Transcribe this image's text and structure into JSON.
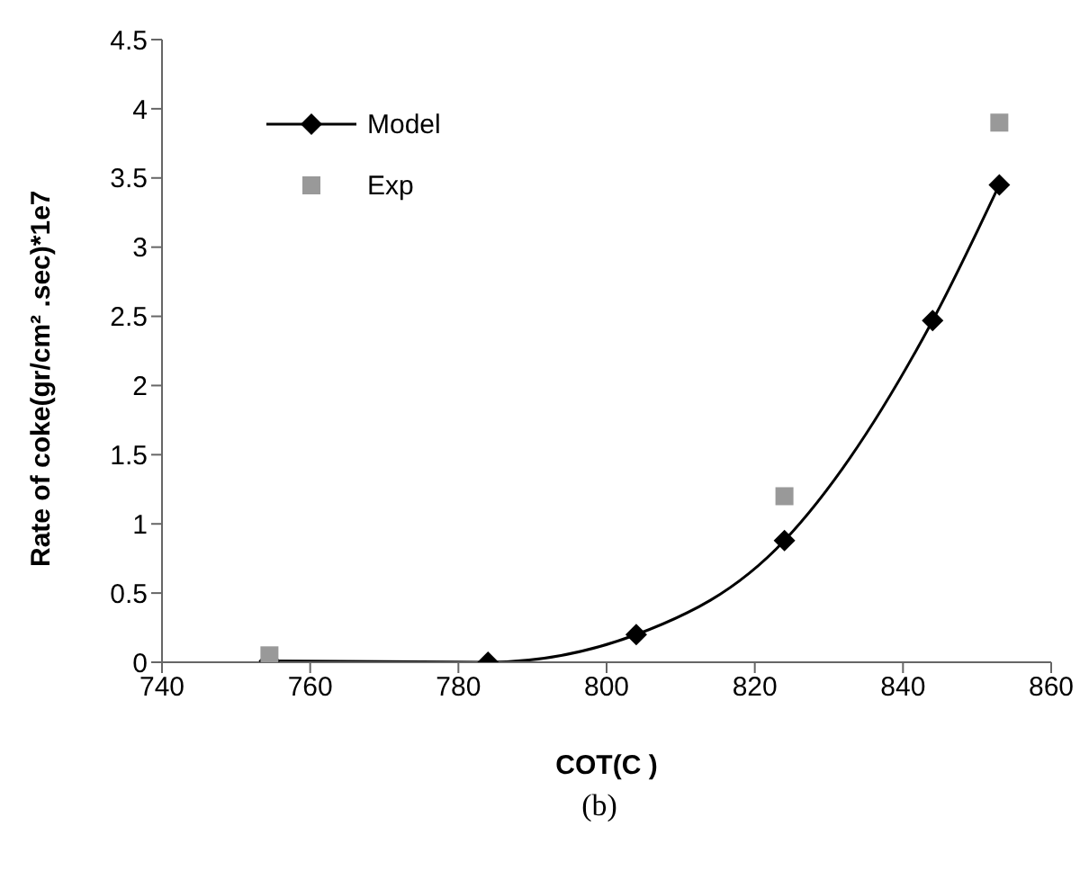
{
  "chart_data": {
    "type": "line",
    "xlabel": "COT(C )",
    "ylabel": "Rate of coke(gr/cm² .sec)*1e7",
    "annotations": [
      "(b)"
    ],
    "xlim": [
      740,
      860
    ],
    "xticks": [
      740,
      760,
      780,
      800,
      820,
      840,
      860
    ],
    "ylim": [
      0,
      4.5
    ],
    "yticks": [
      0,
      0.5,
      1,
      1.5,
      2,
      2.5,
      3,
      3.5,
      4,
      4.5
    ],
    "grid": false,
    "legend": "top left",
    "line_style": "solid",
    "series": [
      {
        "name": "Model",
        "type": "line",
        "marker": "diamond",
        "color": "#000000",
        "x": [
          754.5,
          784,
          804,
          824,
          844,
          853
        ],
        "values": [
          0.01,
          0,
          0.2,
          0.88,
          2.47,
          3.45
        ]
      },
      {
        "name": "Exp",
        "type": "scatter",
        "marker": "square",
        "color": "#999999",
        "x": [
          754.5,
          824,
          853
        ],
        "values": [
          0.05,
          1.2,
          3.9
        ]
      }
    ]
  }
}
